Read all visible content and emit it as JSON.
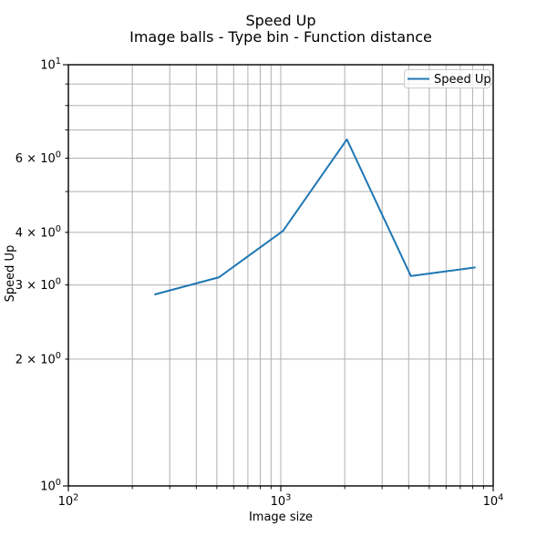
{
  "chart_data": {
    "type": "line",
    "title": "Speed Up",
    "subtitle": "Image balls - Type bin - Function distance",
    "xlabel": "Image size",
    "ylabel": "Speed Up",
    "xscale": "log",
    "yscale": "log",
    "xlim": [
      100,
      10000
    ],
    "ylim": [
      1,
      10
    ],
    "grid": true,
    "legend": {
      "position": "upper-right",
      "entries": [
        {
          "label": "Speed Up",
          "color": "#1f77b4"
        }
      ]
    },
    "series": [
      {
        "name": "Speed Up",
        "color": "#1f77b4",
        "x": [
          256,
          512,
          1024,
          2048,
          4096,
          8192
        ],
        "y": [
          2.85,
          3.13,
          4.03,
          6.65,
          3.15,
          3.3
        ]
      }
    ],
    "xticks": [
      {
        "value": 100,
        "label": "10^2"
      },
      {
        "value": 1000,
        "label": "10^3"
      },
      {
        "value": 10000,
        "label": "10^4"
      }
    ],
    "yticks": [
      {
        "value": 10,
        "label": "10^1"
      },
      {
        "value": 6,
        "label": "6 × 10^0"
      },
      {
        "value": 4,
        "label": "4 × 10^0"
      },
      {
        "value": 3,
        "label": "3 × 10^0"
      },
      {
        "value": 2,
        "label": "2 × 10^0"
      },
      {
        "value": 1,
        "label": "10^0"
      }
    ],
    "colors": {
      "line": "#1f77b4",
      "grid": "#b0b0b0",
      "spine": "#000000",
      "background": "#ffffff",
      "legend_border": "#cccccc"
    }
  }
}
